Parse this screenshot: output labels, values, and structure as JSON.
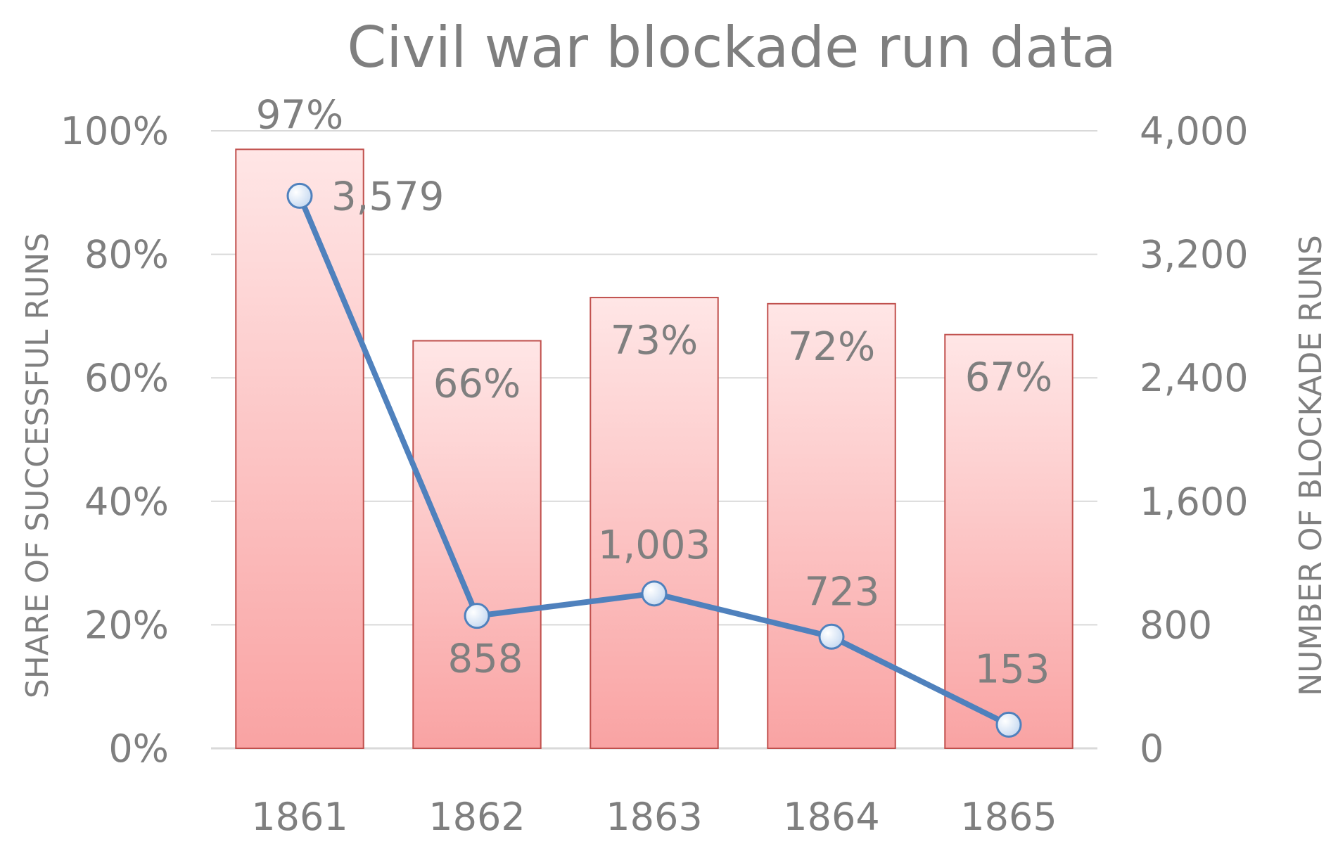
{
  "chart_data": {
    "type": "bar",
    "title": "Civil war blockade run data",
    "categories": [
      "1861",
      "1862",
      "1863",
      "1864",
      "1865"
    ],
    "series": [
      {
        "type": "bar",
        "axis": "left",
        "values": [
          97,
          66,
          73,
          72,
          67
        ],
        "labels": [
          "97%",
          "66%",
          "73%",
          "72%",
          "67%"
        ],
        "color": "#f9a3a3",
        "color_top": "#ffe6e6",
        "border_color": "#c0504d"
      },
      {
        "type": "line",
        "axis": "right",
        "values": [
          3579,
          858,
          1003,
          723,
          153
        ],
        "labels": [
          "3,579",
          "858",
          "1,003",
          "723",
          "153"
        ],
        "color": "#4f81bd",
        "marker_color": "#c6d9f1"
      }
    ],
    "y_left": {
      "label": "SHARE OF SUCCESSFUL  RUNS",
      "range": [
        0,
        100
      ],
      "ticks": [
        0,
        20,
        40,
        60,
        80,
        100
      ],
      "tick_labels": [
        "0%",
        "20%",
        "40%",
        "60%",
        "80%",
        "100%"
      ]
    },
    "y_right": {
      "label": "NUMBER OF BLOCKADE RUNS",
      "range": [
        0,
        4000
      ],
      "ticks": [
        0,
        800,
        1600,
        2400,
        3200,
        4000
      ],
      "tick_labels": [
        "0",
        "800",
        "1,600",
        "2,400",
        "3,200",
        "4,000"
      ]
    },
    "grid": true,
    "grid_color": "#d9d9d9",
    "legend": "none"
  }
}
